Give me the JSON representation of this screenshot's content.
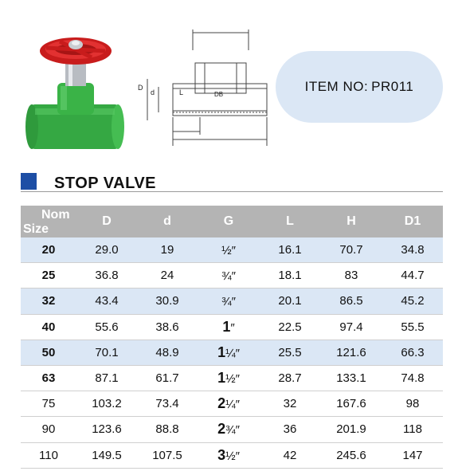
{
  "item": {
    "label": "ITEM  NO:",
    "code": "PR011"
  },
  "title": "STOP  VALVE",
  "drawing_labels": {
    "D": "D",
    "d": "d",
    "L": "L",
    "DB": "DB"
  },
  "table": {
    "headers": {
      "nom": "Nom",
      "size": "Size",
      "D": "D",
      "d": "d",
      "G": "G",
      "L": "L",
      "H": "H",
      "D1": "D1"
    },
    "rows": [
      {
        "size": "20",
        "D": "29.0",
        "d": "19",
        "G_whole": "",
        "G_frac": "½″",
        "L": "16.1",
        "H": "70.7",
        "D1": "34.8",
        "shaded": true,
        "bold": true
      },
      {
        "size": "25",
        "D": "36.8",
        "d": "24",
        "G_whole": "",
        "G_frac": "¾″",
        "L": "18.1",
        "H": "83",
        "D1": "44.7",
        "shaded": false,
        "bold": true
      },
      {
        "size": "32",
        "D": "43.4",
        "d": "30.9",
        "G_whole": "",
        "G_frac": "¾″",
        "L": "20.1",
        "H": "86.5",
        "D1": "45.2",
        "shaded": true,
        "bold": true
      },
      {
        "size": "40",
        "D": "55.6",
        "d": "38.6",
        "G_whole": "1",
        "G_frac": "″",
        "L": "22.5",
        "H": "97.4",
        "D1": "55.5",
        "shaded": false,
        "bold": true
      },
      {
        "size": "50",
        "D": "70.1",
        "d": "48.9",
        "G_whole": "1",
        "G_frac": "¼″",
        "L": "25.5",
        "H": "121.6",
        "D1": "66.3",
        "shaded": true,
        "bold": true
      },
      {
        "size": "63",
        "D": "87.1",
        "d": "61.7",
        "G_whole": "1",
        "G_frac": "½″",
        "L": "28.7",
        "H": "133.1",
        "D1": "74.8",
        "shaded": false,
        "bold": true
      },
      {
        "size": "75",
        "D": "103.2",
        "d": "73.4",
        "G_whole": "2",
        "G_frac": "¼″",
        "L": "32",
        "H": "167.6",
        "D1": "98",
        "shaded": false,
        "bold": false
      },
      {
        "size": "90",
        "D": "123.6",
        "d": "88.8",
        "G_whole": "2",
        "G_frac": "¾″",
        "L": "36",
        "H": "201.9",
        "D1": "118",
        "shaded": false,
        "bold": false
      },
      {
        "size": "110",
        "D": "149.5",
        "d": "107.5",
        "G_whole": "3",
        "G_frac": "½″",
        "L": "42",
        "H": "245.6",
        "D1": "147",
        "shaded": false,
        "bold": false
      }
    ]
  },
  "colors": {
    "pipe_green": "#3fb449",
    "handle_red": "#d21f1f",
    "accent_blue": "#1d4ea5",
    "row_shade": "#dbe7f5",
    "header_grey": "#b4b4b4"
  }
}
